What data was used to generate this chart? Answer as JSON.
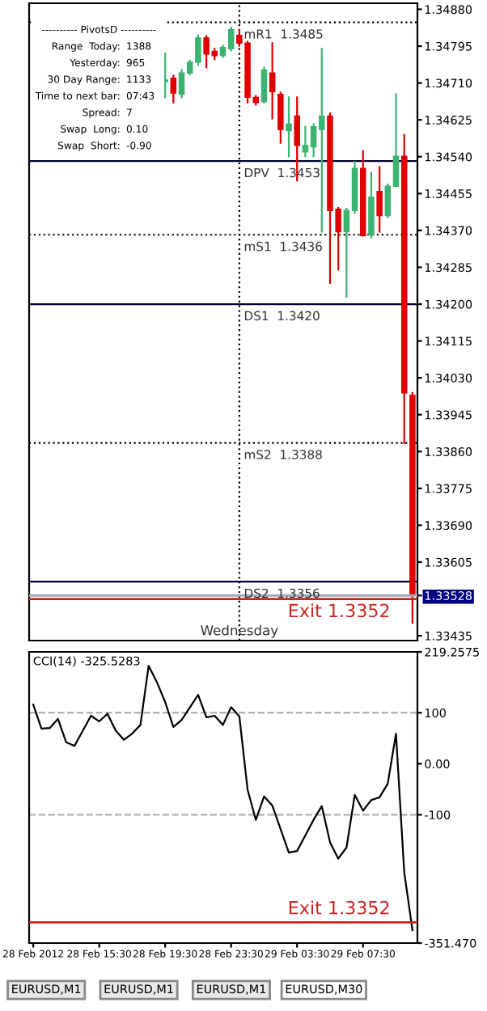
{
  "chart_data": [
    {
      "type": "candlestick",
      "x": [
        "2012-02-28T19:30",
        "2012-02-28T20:00",
        "2012-02-28T20:30",
        "2012-02-28T21:00",
        "2012-02-28T21:30",
        "2012-02-28T22:00",
        "2012-02-28T22:30",
        "2012-02-28T23:00",
        "2012-02-28T23:30",
        "2012-02-29T00:00",
        "2012-02-29T00:30",
        "2012-02-29T01:00",
        "2012-02-29T01:30",
        "2012-02-29T02:00",
        "2012-02-29T02:30",
        "2012-02-29T03:00",
        "2012-02-29T03:30",
        "2012-02-29T04:00",
        "2012-02-29T04:30",
        "2012-02-29T05:00",
        "2012-02-29T05:30",
        "2012-02-29T06:00",
        "2012-02-29T06:30",
        "2012-02-29T07:00",
        "2012-02-29T07:30",
        "2012-02-29T08:00",
        "2012-02-29T08:30",
        "2012-02-29T09:00",
        "2012-02-29T09:30",
        "2012-02-29T10:00",
        "2012-02-29T10:30"
      ],
      "ohlc": [
        [
          1.34713,
          1.34778,
          1.34677,
          1.34717
        ],
        [
          1.34721,
          1.34727,
          1.34665,
          1.34687
        ],
        [
          1.34684,
          1.3474,
          1.34677,
          1.34733
        ],
        [
          1.34733,
          1.34762,
          1.3473,
          1.34758
        ],
        [
          1.34758,
          1.3482,
          1.34752,
          1.34814
        ],
        [
          1.34814,
          1.34818,
          1.34746,
          1.34777
        ],
        [
          1.34783,
          1.34789,
          1.34765,
          1.34773
        ],
        [
          1.34773,
          1.34796,
          1.3477,
          1.34792
        ],
        [
          1.34789,
          1.34838,
          1.34785,
          1.34833
        ],
        [
          1.3482,
          1.34833,
          1.34796,
          1.34802
        ],
        [
          1.34802,
          1.34805,
          1.34665,
          1.34677
        ],
        [
          1.34677,
          1.3468,
          1.3466,
          1.34665
        ],
        [
          1.34667,
          1.34746,
          1.34665,
          1.3474
        ],
        [
          1.34733,
          1.34802,
          1.34628,
          1.3469
        ],
        [
          1.34684,
          1.34688,
          1.34572,
          1.34603
        ],
        [
          1.346,
          1.34677,
          1.34541,
          1.34615
        ],
        [
          1.34634,
          1.34677,
          1.34485,
          1.34566
        ],
        [
          1.34551,
          1.34609,
          1.34541,
          1.34566
        ],
        [
          1.34563,
          1.34615,
          1.34541,
          1.34609
        ],
        [
          1.34603,
          1.34789,
          1.34367,
          1.34634
        ],
        [
          1.34634,
          1.3464,
          1.34249,
          1.34416
        ],
        [
          1.34419,
          1.34422,
          1.3428,
          1.34367
        ],
        [
          1.34367,
          1.3442,
          1.34217,
          1.34416
        ],
        [
          1.34416,
          1.34528,
          1.3441,
          1.34513
        ],
        [
          1.34513,
          1.34553,
          1.34358,
          1.34358
        ],
        [
          1.3436,
          1.34503,
          1.34354,
          1.34447
        ],
        [
          1.3446,
          1.34516,
          1.34367,
          1.34404
        ],
        [
          1.34404,
          1.34476,
          1.344,
          1.34472
        ],
        [
          1.34472,
          1.34684,
          1.34472,
          1.34541
        ],
        [
          1.34541,
          1.3459,
          1.33879,
          1.33995
        ],
        [
          1.3399,
          1.33995,
          1.33465,
          1.33528
        ]
      ],
      "colors": [
        "#3cb371",
        "#e00000",
        "#3cb371",
        "#3cb371",
        "#3cb371",
        "#e00000",
        "#e00000",
        "#3cb371",
        "#3cb371",
        "#e00000",
        "#e00000",
        "#e00000",
        "#3cb371",
        "#e00000",
        "#e00000",
        "#3cb371",
        "#e00000",
        "#3cb371",
        "#3cb371",
        "#3cb371",
        "#e00000",
        "#e00000",
        "#3cb371",
        "#3cb371",
        "#e00000",
        "#3cb371",
        "#e00000",
        "#3cb371",
        "#3cb371",
        "#e00000",
        "#e00000"
      ],
      "xlim": [
        "2012-02-28T11:15",
        "2012-02-29T10:48"
      ],
      "ylim": [
        1.33424,
        1.34894
      ],
      "yticks": [
        {
          "value": 1.3488,
          "label": "1.34880"
        },
        1.34795,
        {
          "value": 1.3471,
          "label": "1.34710"
        },
        1.34625,
        {
          "value": 1.3454,
          "label": "1.34540"
        },
        1.34455,
        {
          "value": 1.3437,
          "label": "1.34370"
        },
        1.34285,
        {
          "value": 1.342,
          "label": "1.34200"
        },
        1.34115,
        {
          "value": 1.3403,
          "label": "1.34030"
        },
        1.33945,
        {
          "value": 1.3386,
          "label": "1.33860"
        },
        1.33775,
        {
          "value": 1.3369,
          "label": "1.33690"
        },
        1.33605,
        1.33528,
        1.33435
      ],
      "tick_labels": "y",
      "ref_lines": [
        {
          "axis": "x",
          "value": "2012-02-29T00:00",
          "line_style": "dotted",
          "color": "#000000"
        },
        {
          "axis": "y",
          "value": 1.3485,
          "label": "mR1  1.3485",
          "line_style": "dotted",
          "color": "#000000"
        },
        {
          "axis": "y",
          "value": 1.3453,
          "label": "DPV  1.3453",
          "line_style": "solid",
          "color": "#000033"
        },
        {
          "axis": "y",
          "value": 1.3436,
          "label": "mS1  1.3436",
          "line_style": "dotted",
          "color": "#000000"
        },
        {
          "axis": "y",
          "value": 1.342,
          "label": "DS1  1.3420",
          "line_style": "solid",
          "color": "#000033"
        },
        {
          "axis": "y",
          "value": 1.3388,
          "label": "mS2  1.3388",
          "line_style": "dotted",
          "color": "#000000"
        },
        {
          "axis": "y",
          "value": 1.3356,
          "label": "DS2  1.3356",
          "line_style": "solid",
          "color": "#000033"
        },
        {
          "axis": "y",
          "value": 1.33528,
          "color": "#a0a8b8"
        },
        {
          "axis": "y",
          "value": 1.3352,
          "label": "Exit 1.3352",
          "color": "#cc2222"
        }
      ],
      "annotations": [
        "---------- PivotsD ----------",
        "Range  Today: 1388",
        "Yesterday: 965",
        "30 Day Range: 1133",
        "Time to next bar: 07:43",
        "Spread: 7",
        "Swap  Long: 0.10",
        "Swap  Short: -0.90",
        {
          "text": "Wednesday",
          "x": "2012-02-29T00:00",
          "y": 1.3343
        }
      ]
    },
    {
      "type": "line",
      "title": "CCI(14) -325.5283",
      "x": [
        "2012-02-28T11:30",
        "2012-02-28T12:00",
        "2012-02-28T12:30",
        "2012-02-28T13:00",
        "2012-02-28T13:30",
        "2012-02-28T14:00",
        "2012-02-28T15:00",
        "2012-02-28T15:30",
        "2012-02-28T16:00",
        "2012-02-28T16:30",
        "2012-02-28T17:00",
        "2012-02-28T17:30",
        "2012-02-28T18:00",
        "2012-02-28T18:30",
        "2012-02-28T19:00",
        "2012-02-28T19:30",
        "2012-02-28T20:00",
        "2012-02-28T20:30",
        "2012-02-28T21:30",
        "2012-02-28T22:00",
        "2012-02-28T22:30",
        "2012-02-28T23:00",
        "2012-02-28T23:30",
        "2012-02-29T00:00",
        "2012-02-29T00:30",
        "2012-02-29T01:00",
        "2012-02-29T01:30",
        "2012-02-29T02:00",
        "2012-02-29T03:00",
        "2012-02-29T03:30",
        "2012-02-29T04:30",
        "2012-02-29T05:00",
        "2012-02-29T05:30",
        "2012-02-29T06:00",
        "2012-02-29T06:30",
        "2012-02-29T07:00",
        "2012-02-29T07:30",
        "2012-02-29T08:00",
        "2012-02-29T08:30",
        "2012-02-29T09:00",
        "2012-02-29T09:30",
        "2012-02-29T10:00",
        "2012-02-29T10:30"
      ],
      "series": [
        {
          "color": "#000000",
          "values": [
            116,
            69,
            70,
            88,
            42,
            35,
            94,
            83,
            98,
            65,
            47,
            59,
            76,
            192,
            160,
            121,
            72,
            86,
            135,
            91,
            94,
            76,
            111,
            93,
            -51,
            -110,
            -64,
            -82,
            -174,
            -171,
            -110,
            -83,
            -154,
            -186,
            -164,
            -61,
            -92,
            -71,
            -66,
            -39,
            59,
            -213,
            -326
          ]
        }
      ],
      "xlim": [
        "2012-02-28T11:15",
        "2012-02-29T10:48"
      ],
      "ylim": [
        -351.47,
        219.2575
      ],
      "xticks": [
        {
          "value": "2012-02-28T11:30",
          "label": "28 Feb 2012"
        },
        {
          "value": "2012-02-28T15:30",
          "label": "28 Feb 15:30"
        },
        {
          "value": "2012-02-28T19:30",
          "label": "28 Feb 19:30"
        },
        {
          "value": "2012-02-28T23:30",
          "label": "28 Feb 23:30"
        },
        {
          "value": "2012-02-29T03:30",
          "label": "29 Feb 03:30"
        },
        {
          "value": "2012-02-29T07:30",
          "label": "29 Feb 07:30"
        }
      ],
      "yticks": [
        219.2575,
        100,
        {
          "value": 0,
          "label": "0.00"
        },
        -100,
        {
          "value": -351.47,
          "label": "-351.470"
        }
      ],
      "ref_lines": [
        {
          "axis": "y",
          "value": 100,
          "line_style": "dashed",
          "color": "#b0b0b0"
        },
        {
          "axis": "y",
          "value": -100,
          "line_style": "dashed",
          "color": "#b0b0b0"
        },
        {
          "axis": "y",
          "value": -311,
          "label": "Exit 1.3352",
          "color": "#cc2222"
        }
      ],
      "annotations": [
        "EURUSD,M1",
        "EURUSD,M1",
        "EURUSD,M1",
        "EURUSD,M30"
      ]
    }
  ]
}
